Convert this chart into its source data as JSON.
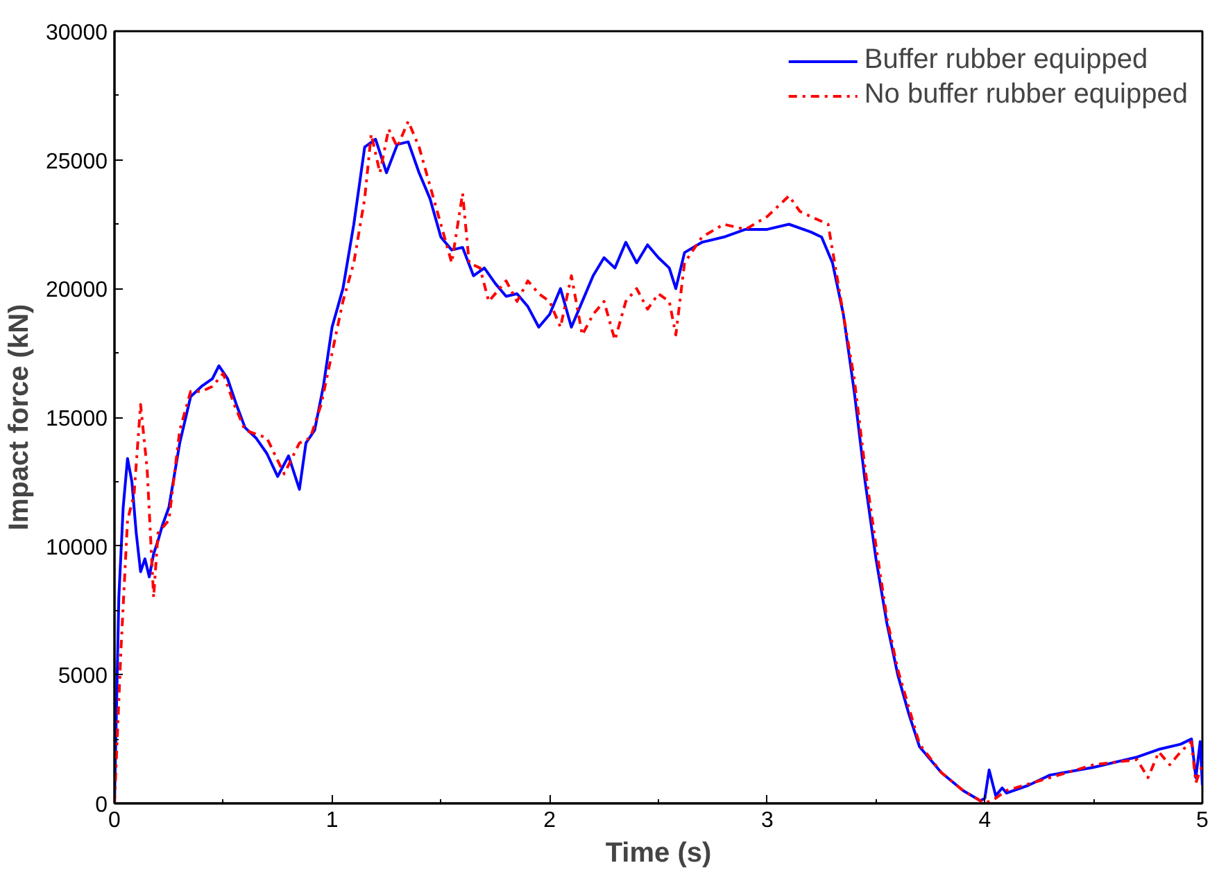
{
  "chart_data": {
    "type": "line",
    "xlabel": "Time (s)",
    "ylabel": "Impact force (kN)",
    "xlim": [
      0,
      5
    ],
    "xticks": [
      0,
      1,
      2,
      3,
      4,
      5
    ],
    "ylim": [
      0,
      30000
    ],
    "yticks": [
      0,
      5000,
      10000,
      15000,
      20000,
      25000,
      30000
    ],
    "grid": false,
    "legend": "top right",
    "marker": "none",
    "series": [
      {
        "name": "Buffer rubber equipped",
        "color": "#0000ff",
        "line_style": "solid",
        "x": [
          0,
          0.02,
          0.04,
          0.06,
          0.08,
          0.1,
          0.12,
          0.14,
          0.16,
          0.18,
          0.2,
          0.22,
          0.25,
          0.3,
          0.35,
          0.4,
          0.45,
          0.48,
          0.52,
          0.56,
          0.6,
          0.65,
          0.7,
          0.75,
          0.8,
          0.85,
          0.88,
          0.92,
          0.96,
          1.0,
          1.05,
          1.1,
          1.15,
          1.2,
          1.25,
          1.3,
          1.35,
          1.4,
          1.45,
          1.5,
          1.55,
          1.6,
          1.65,
          1.7,
          1.75,
          1.8,
          1.85,
          1.9,
          1.95,
          2.0,
          2.05,
          2.1,
          2.15,
          2.2,
          2.25,
          2.3,
          2.35,
          2.4,
          2.45,
          2.5,
          2.55,
          2.58,
          2.62,
          2.7,
          2.8,
          2.9,
          3.0,
          3.1,
          3.2,
          3.25,
          3.3,
          3.35,
          3.4,
          3.45,
          3.5,
          3.55,
          3.6,
          3.65,
          3.7,
          3.8,
          3.9,
          3.98,
          4.0,
          4.02,
          4.05,
          4.08,
          4.1,
          4.2,
          4.3,
          4.5,
          4.7,
          4.8,
          4.9,
          4.95,
          4.97,
          4.99,
          5.0
        ],
        "values": [
          0,
          8000,
          11500,
          13400,
          12500,
          10500,
          9000,
          9500,
          8800,
          9700,
          10200,
          10800,
          11500,
          14000,
          15800,
          16200,
          16500,
          17000,
          16500,
          15500,
          14600,
          14200,
          13600,
          12700,
          13500,
          12200,
          14000,
          14500,
          16200,
          18500,
          20000,
          22500,
          25500,
          25800,
          24500,
          25600,
          25700,
          24500,
          23500,
          22000,
          21500,
          21600,
          20500,
          20800,
          20200,
          19700,
          19800,
          19300,
          18500,
          19000,
          20000,
          18500,
          19500,
          20500,
          21200,
          20800,
          21800,
          21000,
          21700,
          21200,
          20800,
          20000,
          21400,
          21800,
          22000,
          22300,
          22300,
          22500,
          22200,
          22000,
          21000,
          19000,
          16000,
          12500,
          9500,
          7000,
          5000,
          3500,
          2200,
          1200,
          500,
          100,
          200,
          1300,
          300,
          600,
          400,
          700,
          1100,
          1400,
          1800,
          2100,
          2300,
          2500,
          1000,
          2400,
          700
        ]
      },
      {
        "name": "No buffer rubber equipped",
        "color": "#ff0000",
        "line_style": "dashdot",
        "x": [
          0,
          0.03,
          0.06,
          0.09,
          0.12,
          0.15,
          0.18,
          0.2,
          0.25,
          0.3,
          0.35,
          0.4,
          0.45,
          0.5,
          0.55,
          0.6,
          0.7,
          0.78,
          0.85,
          0.9,
          0.95,
          1.0,
          1.05,
          1.1,
          1.15,
          1.18,
          1.22,
          1.26,
          1.3,
          1.35,
          1.4,
          1.45,
          1.5,
          1.55,
          1.6,
          1.63,
          1.68,
          1.72,
          1.8,
          1.85,
          1.9,
          1.95,
          2.0,
          2.05,
          2.1,
          2.15,
          2.2,
          2.25,
          2.3,
          2.35,
          2.4,
          2.45,
          2.5,
          2.55,
          2.58,
          2.62,
          2.7,
          2.8,
          2.9,
          3.0,
          3.1,
          3.15,
          3.2,
          3.28,
          3.33,
          3.4,
          3.45,
          3.5,
          3.55,
          3.6,
          3.7,
          3.8,
          3.9,
          4.0,
          4.05,
          4.1,
          4.3,
          4.5,
          4.7,
          4.75,
          4.8,
          4.85,
          4.9,
          4.95,
          4.97,
          5.0
        ],
        "values": [
          0,
          6000,
          11000,
          12000,
          15500,
          13000,
          8000,
          10500,
          11000,
          14500,
          16000,
          16000,
          16200,
          16700,
          15500,
          14500,
          14200,
          12800,
          14000,
          14200,
          15500,
          17500,
          19500,
          21000,
          23500,
          26000,
          24500,
          26200,
          25500,
          26500,
          25500,
          24000,
          22500,
          21000,
          23700,
          21000,
          20800,
          19500,
          20300,
          19500,
          20300,
          19800,
          19500,
          18500,
          20500,
          18200,
          19000,
          19500,
          18000,
          19500,
          20000,
          19200,
          19800,
          19500,
          18200,
          21000,
          22000,
          22500,
          22300,
          22800,
          23600,
          23000,
          22800,
          22500,
          20000,
          16500,
          13000,
          10000,
          7200,
          5200,
          2300,
          1200,
          500,
          0,
          200,
          500,
          1000,
          1500,
          1700,
          1000,
          2000,
          1500,
          2000,
          2400,
          800,
          1500
        ]
      }
    ]
  }
}
